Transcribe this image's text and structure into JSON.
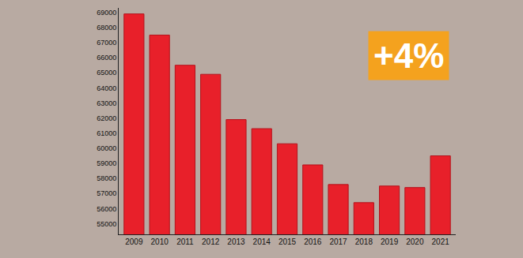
{
  "chart_data": {
    "type": "bar",
    "categories": [
      "2009",
      "2010",
      "2011",
      "2012",
      "2013",
      "2014",
      "2015",
      "2016",
      "2017",
      "2018",
      "2019",
      "2020",
      "2021"
    ],
    "values": [
      68900,
      67500,
      65500,
      64900,
      61900,
      61300,
      60300,
      58900,
      57600,
      56400,
      57500,
      57400,
      59500
    ],
    "color": "#e8202a",
    "ylim": [
      54300,
      69300
    ],
    "yticks": [
      55000,
      56000,
      57000,
      58000,
      59000,
      60000,
      61000,
      62000,
      63000,
      64000,
      65000,
      66000,
      67000,
      68000,
      69000
    ],
    "grid": false,
    "annotations": [
      "+4%"
    ]
  }
}
